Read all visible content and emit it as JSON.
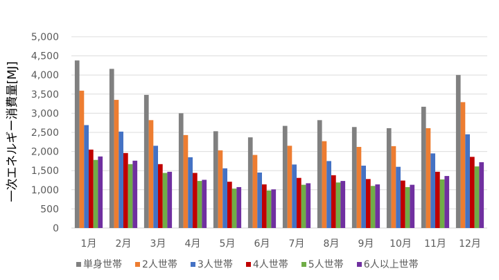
{
  "chart_data": {
    "type": "bar",
    "title": "",
    "xlabel": "",
    "ylabel": "一次エネルギー消費量[MJ]",
    "ylim": [
      0,
      5000
    ],
    "yticks": [
      "0",
      "500",
      "1,000",
      "1,500",
      "2,000",
      "2,500",
      "3,000",
      "3,500",
      "4,000",
      "4,500",
      "5,000"
    ],
    "grid": true,
    "legend_position": "bottom",
    "categories": [
      "1月",
      "2月",
      "3月",
      "4月",
      "5月",
      "6月",
      "7月",
      "8月",
      "9月",
      "10月",
      "11月",
      "12月"
    ],
    "series": [
      {
        "name": "単身世帯",
        "color": "#808080",
        "values": [
          4380,
          4160,
          3480,
          3000,
          2530,
          2370,
          2670,
          2820,
          2640,
          2610,
          3170,
          4000
        ]
      },
      {
        "name": "2人世帯",
        "color": "#ED7D31",
        "values": [
          3590,
          3350,
          2820,
          2430,
          2030,
          1910,
          2150,
          2270,
          2120,
          2140,
          2610,
          3290
        ]
      },
      {
        "name": "3人世帯",
        "color": "#4472C4",
        "values": [
          2690,
          2520,
          2150,
          1850,
          1560,
          1450,
          1660,
          1750,
          1630,
          1600,
          1950,
          2450
        ]
      },
      {
        "name": "4人世帯",
        "color": "#C00000",
        "values": [
          2050,
          1960,
          1670,
          1440,
          1210,
          1140,
          1310,
          1380,
          1280,
          1240,
          1470,
          1860
        ]
      },
      {
        "name": "5人世帯",
        "color": "#70AD47",
        "values": [
          1780,
          1670,
          1440,
          1230,
          1030,
          980,
          1130,
          1190,
          1100,
          1070,
          1270,
          1610
        ]
      },
      {
        "name": "6人以上世帯",
        "color": "#7030A0",
        "values": [
          1870,
          1760,
          1470,
          1260,
          1070,
          1010,
          1170,
          1230,
          1140,
          1130,
          1360,
          1720
        ]
      }
    ]
  }
}
